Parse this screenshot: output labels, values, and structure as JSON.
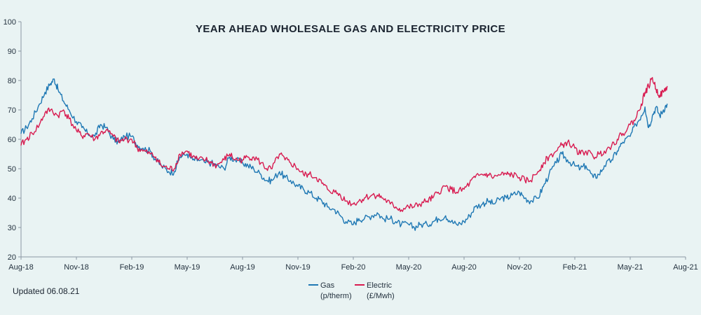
{
  "chart_data": {
    "type": "line",
    "title": "YEAR AHEAD WHOLESALE GAS AND ELECTRICITY PRICE",
    "xlabel": "",
    "ylabel": "",
    "ylim": [
      20,
      100
    ],
    "yticks": [
      20,
      30,
      40,
      50,
      60,
      70,
      80,
      90,
      100
    ],
    "xlim": [
      0,
      36
    ],
    "xticks": [
      {
        "label": "Aug-18",
        "x": 0
      },
      {
        "label": "Nov-18",
        "x": 3
      },
      {
        "label": "Feb-19",
        "x": 6
      },
      {
        "label": "May-19",
        "x": 9
      },
      {
        "label": "Aug-19",
        "x": 12
      },
      {
        "label": "Nov-19",
        "x": 15
      },
      {
        "label": "Feb-20",
        "x": 18
      },
      {
        "label": "May-20",
        "x": 21
      },
      {
        "label": "Aug-20",
        "x": 24
      },
      {
        "label": "Nov-20",
        "x": 27
      },
      {
        "label": "Feb-21",
        "x": 30
      },
      {
        "label": "May-21",
        "x": 33
      },
      {
        "label": "Aug-21",
        "x": 36
      }
    ],
    "x_unit": "months since Aug-18",
    "series": [
      {
        "name": "Gas",
        "unit": "(p/therm)",
        "color": "#1f78b4",
        "points": [
          [
            0,
            62
          ],
          [
            0.3,
            64
          ],
          [
            0.6,
            67
          ],
          [
            1.0,
            72
          ],
          [
            1.3,
            76
          ],
          [
            1.6,
            79
          ],
          [
            1.8,
            80.5
          ],
          [
            2.0,
            77
          ],
          [
            2.3,
            73
          ],
          [
            2.6,
            70
          ],
          [
            3.0,
            66
          ],
          [
            3.3,
            64
          ],
          [
            3.6,
            62
          ],
          [
            4.0,
            61
          ],
          [
            4.3,
            65
          ],
          [
            4.6,
            64
          ],
          [
            5.0,
            60
          ],
          [
            5.3,
            59
          ],
          [
            5.6,
            61
          ],
          [
            6.0,
            61
          ],
          [
            6.3,
            58
          ],
          [
            6.6,
            57
          ],
          [
            7.0,
            56
          ],
          [
            7.3,
            53
          ],
          [
            7.6,
            51
          ],
          [
            8.0,
            49
          ],
          [
            8.3,
            49
          ],
          [
            8.6,
            54
          ],
          [
            9.0,
            55
          ],
          [
            9.3,
            53
          ],
          [
            9.6,
            53
          ],
          [
            10.0,
            52
          ],
          [
            10.3,
            52
          ],
          [
            10.6,
            51
          ],
          [
            11.0,
            50
          ],
          [
            11.3,
            54
          ],
          [
            11.6,
            53
          ],
          [
            12.0,
            52
          ],
          [
            12.3,
            51
          ],
          [
            12.6,
            50
          ],
          [
            13.0,
            48
          ],
          [
            13.3,
            46
          ],
          [
            13.6,
            46
          ],
          [
            14.0,
            49
          ],
          [
            14.3,
            47
          ],
          [
            14.6,
            46
          ],
          [
            15.0,
            44
          ],
          [
            15.3,
            43
          ],
          [
            15.6,
            42
          ],
          [
            16.0,
            40
          ],
          [
            16.3,
            39
          ],
          [
            16.6,
            37
          ],
          [
            17.0,
            36
          ],
          [
            17.3,
            34
          ],
          [
            17.6,
            32
          ],
          [
            18.0,
            31
          ],
          [
            18.3,
            33
          ],
          [
            18.6,
            33
          ],
          [
            19.0,
            34
          ],
          [
            19.3,
            35
          ],
          [
            19.6,
            33
          ],
          [
            20.0,
            33
          ],
          [
            20.3,
            32
          ],
          [
            20.6,
            31
          ],
          [
            21.0,
            31
          ],
          [
            21.3,
            30
          ],
          [
            21.6,
            31
          ],
          [
            22.0,
            31
          ],
          [
            22.3,
            32
          ],
          [
            22.6,
            33
          ],
          [
            23.0,
            34
          ],
          [
            23.3,
            32
          ],
          [
            23.6,
            31
          ],
          [
            24.0,
            32
          ],
          [
            24.3,
            34
          ],
          [
            24.6,
            37
          ],
          [
            25.0,
            38
          ],
          [
            25.3,
            39
          ],
          [
            25.6,
            38
          ],
          [
            26.0,
            40
          ],
          [
            26.3,
            40
          ],
          [
            26.6,
            41
          ],
          [
            27.0,
            42
          ],
          [
            27.3,
            40
          ],
          [
            27.6,
            39
          ],
          [
            28.0,
            40
          ],
          [
            28.3,
            44
          ],
          [
            28.6,
            48
          ],
          [
            29.0,
            52
          ],
          [
            29.3,
            55
          ],
          [
            29.6,
            53
          ],
          [
            30.0,
            51
          ],
          [
            30.3,
            50
          ],
          [
            30.6,
            51
          ],
          [
            31.0,
            47
          ],
          [
            31.3,
            48
          ],
          [
            31.6,
            51
          ],
          [
            32.0,
            53
          ],
          [
            32.3,
            56
          ],
          [
            32.6,
            59
          ],
          [
            33.0,
            61
          ],
          [
            33.3,
            65
          ],
          [
            33.6,
            68
          ],
          [
            33.8,
            71
          ],
          [
            34.0,
            64
          ],
          [
            34.2,
            68
          ],
          [
            34.4,
            71
          ],
          [
            34.6,
            68
          ],
          [
            34.8,
            70
          ],
          [
            35.0,
            72
          ]
        ]
      },
      {
        "name": "Electric",
        "unit": "(£/Mwh)",
        "color": "#d81b50",
        "points": [
          [
            0,
            58
          ],
          [
            0.3,
            60
          ],
          [
            0.6,
            62
          ],
          [
            1.0,
            65
          ],
          [
            1.3,
            69
          ],
          [
            1.6,
            70
          ],
          [
            2.0,
            68
          ],
          [
            2.3,
            70
          ],
          [
            2.6,
            67
          ],
          [
            3.0,
            63
          ],
          [
            3.3,
            61
          ],
          [
            3.6,
            62
          ],
          [
            4.0,
            60
          ],
          [
            4.3,
            62
          ],
          [
            4.6,
            63
          ],
          [
            5.0,
            61
          ],
          [
            5.3,
            59
          ],
          [
            5.6,
            60
          ],
          [
            6.0,
            60
          ],
          [
            6.3,
            57
          ],
          [
            6.6,
            56
          ],
          [
            7.0,
            55
          ],
          [
            7.3,
            54
          ],
          [
            7.6,
            51
          ],
          [
            8.0,
            50
          ],
          [
            8.3,
            50
          ],
          [
            8.6,
            55
          ],
          [
            9.0,
            56
          ],
          [
            9.3,
            54
          ],
          [
            9.6,
            53
          ],
          [
            10.0,
            53
          ],
          [
            10.3,
            52
          ],
          [
            10.6,
            51
          ],
          [
            11.0,
            53
          ],
          [
            11.3,
            55
          ],
          [
            11.6,
            53
          ],
          [
            12.0,
            53
          ],
          [
            12.3,
            54
          ],
          [
            12.6,
            54
          ],
          [
            13.0,
            52
          ],
          [
            13.3,
            50
          ],
          [
            13.6,
            50
          ],
          [
            14.0,
            55
          ],
          [
            14.3,
            53
          ],
          [
            14.6,
            52
          ],
          [
            15.0,
            50
          ],
          [
            15.3,
            48
          ],
          [
            15.6,
            48
          ],
          [
            16.0,
            47
          ],
          [
            16.3,
            45
          ],
          [
            16.6,
            43
          ],
          [
            17.0,
            42
          ],
          [
            17.3,
            41
          ],
          [
            17.6,
            39
          ],
          [
            18.0,
            38
          ],
          [
            18.3,
            39
          ],
          [
            18.6,
            40
          ],
          [
            19.0,
            41
          ],
          [
            19.3,
            41
          ],
          [
            19.6,
            40
          ],
          [
            20.0,
            38
          ],
          [
            20.3,
            37
          ],
          [
            20.6,
            36
          ],
          [
            21.0,
            37
          ],
          [
            21.3,
            37
          ],
          [
            21.6,
            38
          ],
          [
            22.0,
            39
          ],
          [
            22.3,
            40
          ],
          [
            22.6,
            42
          ],
          [
            23.0,
            44
          ],
          [
            23.3,
            43
          ],
          [
            23.6,
            42
          ],
          [
            24.0,
            43
          ],
          [
            24.3,
            45
          ],
          [
            24.6,
            47
          ],
          [
            25.0,
            48
          ],
          [
            25.3,
            48
          ],
          [
            25.6,
            47
          ],
          [
            26.0,
            48
          ],
          [
            26.3,
            48
          ],
          [
            26.6,
            48
          ],
          [
            27.0,
            47
          ],
          [
            27.3,
            46
          ],
          [
            27.6,
            46
          ],
          [
            28.0,
            49
          ],
          [
            28.3,
            52
          ],
          [
            28.6,
            54
          ],
          [
            29.0,
            56
          ],
          [
            29.3,
            58
          ],
          [
            29.6,
            59
          ],
          [
            30.0,
            57
          ],
          [
            30.3,
            55
          ],
          [
            30.6,
            56
          ],
          [
            31.0,
            54
          ],
          [
            31.3,
            55
          ],
          [
            31.6,
            56
          ],
          [
            32.0,
            58
          ],
          [
            32.3,
            60
          ],
          [
            32.6,
            62
          ],
          [
            33.0,
            65
          ],
          [
            33.3,
            67
          ],
          [
            33.6,
            72
          ],
          [
            33.8,
            76
          ],
          [
            34.0,
            78
          ],
          [
            34.2,
            81
          ],
          [
            34.4,
            77
          ],
          [
            34.6,
            75
          ],
          [
            34.8,
            76
          ],
          [
            35.0,
            78
          ]
        ]
      }
    ],
    "note": "Updated 06.08.21"
  }
}
